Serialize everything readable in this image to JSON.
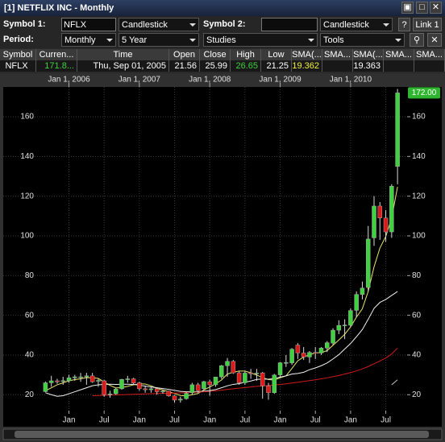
{
  "window": {
    "title": "[1] NETFLIX INC - Monthly"
  },
  "toolbar": {
    "symbol1_label": "Symbol 1:",
    "symbol1": "NFLX",
    "chart_type1": "Candlestick",
    "symbol2_label": "Symbol 2:",
    "chart_type2": "Candlestick",
    "help": "?",
    "link": "Link 1",
    "period_label": "Period:",
    "period": "Monthly",
    "range": "5 Year",
    "studies": "Studies",
    "tools": "Tools"
  },
  "table": {
    "headers": [
      "Symbol",
      "Curren...",
      "Time",
      "Open",
      "Close",
      "High",
      "Low",
      "SMA(...",
      "SMA...",
      "SMA(...",
      "SMA...",
      "SMA..."
    ],
    "rows": [
      [
        "NFLX",
        "171.8...",
        "Thu, Sep 01, 2005",
        "21.56",
        "25.99",
        "26.65",
        "21.25",
        "19.362",
        null,
        "19.363",
        null,
        null
      ]
    ]
  },
  "chart_data": {
    "type": "candlestick",
    "x": [
      "2005-09",
      "2005-10",
      "2005-11",
      "2005-12",
      "2006-01",
      "2006-02",
      "2006-03",
      "2006-04",
      "2006-05",
      "2006-06",
      "2006-07",
      "2006-08",
      "2006-09",
      "2006-10",
      "2006-11",
      "2006-12",
      "2007-01",
      "2007-02",
      "2007-03",
      "2007-04",
      "2007-05",
      "2007-06",
      "2007-07",
      "2007-08",
      "2007-09",
      "2007-10",
      "2007-11",
      "2007-12",
      "2008-01",
      "2008-02",
      "2008-03",
      "2008-04",
      "2008-05",
      "2008-06",
      "2008-07",
      "2008-08",
      "2008-09",
      "2008-10",
      "2008-11",
      "2008-12",
      "2009-01",
      "2009-02",
      "2009-03",
      "2009-04",
      "2009-05",
      "2009-06",
      "2009-07",
      "2009-08",
      "2009-09",
      "2009-10",
      "2009-11",
      "2009-12",
      "2010-01",
      "2010-02",
      "2010-03",
      "2010-04",
      "2010-05",
      "2010-06",
      "2010-07",
      "2010-08",
      "2010-09"
    ],
    "open": [
      21.56,
      26,
      27,
      27,
      27,
      28.5,
      29,
      29,
      29.5,
      27,
      27,
      20,
      20.5,
      23,
      28,
      28,
      26,
      23,
      22.5,
      23,
      21.5,
      21.8,
      19.4,
      17.3,
      18,
      21,
      25,
      23,
      26.5,
      25,
      29,
      34.6,
      36.8,
      31,
      26,
      31,
      30.5,
      31,
      24.5,
      21,
      30,
      36,
      36,
      45,
      41,
      39,
      41.3,
      41,
      43.5,
      46,
      52.5,
      55,
      55,
      62.5,
      70.5,
      74,
      99,
      115,
      109,
      102,
      135
    ],
    "high": [
      26.65,
      29.5,
      28,
      29,
      30,
      30,
      31,
      31,
      31,
      28,
      27.5,
      22,
      23.5,
      28,
      29.5,
      28.5,
      26.5,
      24.5,
      24,
      23.5,
      22.5,
      22,
      19.8,
      19,
      21.5,
      26,
      26,
      27,
      27.5,
      29,
      35,
      38.5,
      37.5,
      32,
      32,
      33,
      33,
      31.5,
      26,
      30.5,
      36.5,
      40,
      43.5,
      46,
      44,
      42,
      44,
      44,
      47,
      53.5,
      57.5,
      58,
      63.5,
      72,
      77,
      105,
      120,
      117,
      113,
      126,
      174
    ],
    "low": [
      21.25,
      24,
      25.5,
      25,
      26,
      27,
      26.5,
      25,
      26,
      24,
      19,
      18.5,
      20,
      22.5,
      26,
      25,
      22,
      21,
      21,
      20,
      20.5,
      19,
      16,
      16,
      17.5,
      20,
      21,
      22.5,
      19.5,
      24,
      28,
      29,
      30.5,
      25,
      25,
      28,
      27,
      18,
      17.5,
      20.5,
      28.5,
      34,
      35,
      38,
      37.5,
      36,
      38,
      40,
      41.5,
      45,
      50.5,
      48,
      54,
      59,
      68,
      72,
      95,
      98,
      97,
      99,
      126
    ],
    "close": [
      25.99,
      27,
      26.5,
      27.06,
      28.5,
      29,
      29,
      29.5,
      26.5,
      27.2,
      20,
      20.4,
      22.8,
      27.7,
      28,
      25.9,
      23,
      22.5,
      23,
      21.5,
      21.8,
      19.4,
      17.3,
      17.8,
      20.7,
      25,
      22,
      26.6,
      25,
      28.9,
      34.6,
      36.8,
      31,
      26,
      30.9,
      30.5,
      30.9,
      24.5,
      21,
      29.9,
      36.1,
      36.2,
      42.9,
      41,
      39,
      41.3,
      41,
      43.5,
      46.2,
      52.5,
      54.9,
      55.1,
      62.4,
      70.5,
      73.7,
      98.4,
      115,
      109,
      102,
      125,
      172
    ],
    "up_color": "#3fd23f",
    "down_color": "#e01818",
    "lines": [
      {
        "color": "#e8e86a",
        "values": [
          22,
          23.5,
          25,
          26,
          27,
          27.6,
          28,
          28.6,
          28.5,
          28.2,
          26.4,
          24.7,
          23.4,
          23.6,
          24.2,
          25,
          25.5,
          25.4,
          24.5,
          23.2,
          22.4,
          21.6,
          20.6,
          19.6,
          19.4,
          20,
          20.6,
          22.4,
          23.9,
          25.5,
          27.4,
          30.4,
          31.3,
          31.9,
          31.9,
          31,
          29.9,
          28.6,
          27.6,
          27.4,
          28.5,
          29.5,
          33.2,
          37.1,
          39,
          40.1,
          41.1,
          41.2,
          42.2,
          44.9,
          47.6,
          50.4,
          54.2,
          59.1,
          63.3,
          72,
          84.4,
          93.9,
          99.7,
          108.9,
          124.7
        ]
      },
      {
        "color": "#f2f2f2",
        "values": [
          21,
          20,
          19.2,
          19.5,
          20.5,
          21.5,
          22.5,
          23.5,
          24.5,
          25,
          25.2,
          25.3,
          25.2,
          25.3,
          25.3,
          25.2,
          24.8,
          24.3,
          23.9,
          23.5,
          23.1,
          22.7,
          22.2,
          21.7,
          21.5,
          21.5,
          21.5,
          21.8,
          22.1,
          22.6,
          23.5,
          24.5,
          25.2,
          25.6,
          26.3,
          26.9,
          27.7,
          27.9,
          27.8,
          28.1,
          28.9,
          29.5,
          30.4,
          30.7,
          31.3,
          32.6,
          33.5,
          34.6,
          36,
          38,
          40.2,
          43,
          45.8,
          49.2,
          52.8,
          58,
          63.5,
          66.5,
          68,
          70,
          72
        ]
      },
      {
        "color": "#d11a1a",
        "values": [
          null,
          null,
          null,
          null,
          null,
          null,
          null,
          null,
          19.5,
          19.6,
          19.7,
          19.8,
          19.9,
          20,
          20.1,
          20.2,
          20.3,
          20.4,
          20.5,
          20.6,
          20.7,
          20.7,
          20.8,
          20.9,
          21,
          21.1,
          21.3,
          21.5,
          21.7,
          22,
          22.3,
          22.7,
          23,
          23.3,
          23.6,
          23.9,
          24.2,
          24.4,
          24.6,
          24.9,
          25.2,
          25.5,
          25.9,
          26.3,
          26.7,
          27.1,
          27.5,
          28,
          28.5,
          29.1,
          29.7,
          30.4,
          31.1,
          32,
          33,
          34.2,
          35.6,
          37,
          38.5,
          40.5,
          43.5
        ]
      },
      {
        "color": "#bdbdbd",
        "values": [
          null,
          null,
          null,
          null,
          null,
          null,
          null,
          null,
          null,
          null,
          null,
          null,
          null,
          null,
          null,
          null,
          null,
          null,
          null,
          null,
          null,
          null,
          null,
          null,
          null,
          null,
          null,
          null,
          null,
          null,
          null,
          null,
          null,
          null,
          null,
          null,
          null,
          null,
          null,
          null,
          null,
          null,
          null,
          null,
          null,
          null,
          null,
          null,
          null,
          null,
          null,
          null,
          null,
          null,
          null,
          null,
          null,
          null,
          null,
          25,
          27.5
        ]
      }
    ],
    "xlim": [
      "2005-01-25",
      "2010-10-20"
    ],
    "xticks_top": [
      {
        "value": "2006-01-01",
        "label": "Jan 1, 2006"
      },
      {
        "value": "2007-01-01",
        "label": "Jan 1, 2007"
      },
      {
        "value": "2008-01-01",
        "label": "Jan 1, 2008"
      },
      {
        "value": "2009-01-01",
        "label": "Jan 1, 2009"
      },
      {
        "value": "2010-01-01",
        "label": "Jan 1, 2010"
      }
    ],
    "xticks": [
      {
        "value": "2006-01-01",
        "label": "Jan"
      },
      {
        "value": "2006-07-01",
        "label": "Jul"
      },
      {
        "value": "2007-01-01",
        "label": "Jan"
      },
      {
        "value": "2007-07-01",
        "label": "Jul"
      },
      {
        "value": "2008-01-01",
        "label": "Jan"
      },
      {
        "value": "2008-07-01",
        "label": "Jul"
      },
      {
        "value": "2009-01-01",
        "label": "Jan"
      },
      {
        "value": "2009-07-01",
        "label": "Jul"
      },
      {
        "value": "2010-01-01",
        "label": "Jan"
      },
      {
        "value": "2010-07-01",
        "label": "Jul"
      }
    ],
    "ylim": [
      12,
      175
    ],
    "yticks": [
      20,
      40,
      60,
      80,
      100,
      120,
      140,
      160
    ],
    "last_price": {
      "value": 172,
      "label": "172.00"
    },
    "grid": true
  }
}
